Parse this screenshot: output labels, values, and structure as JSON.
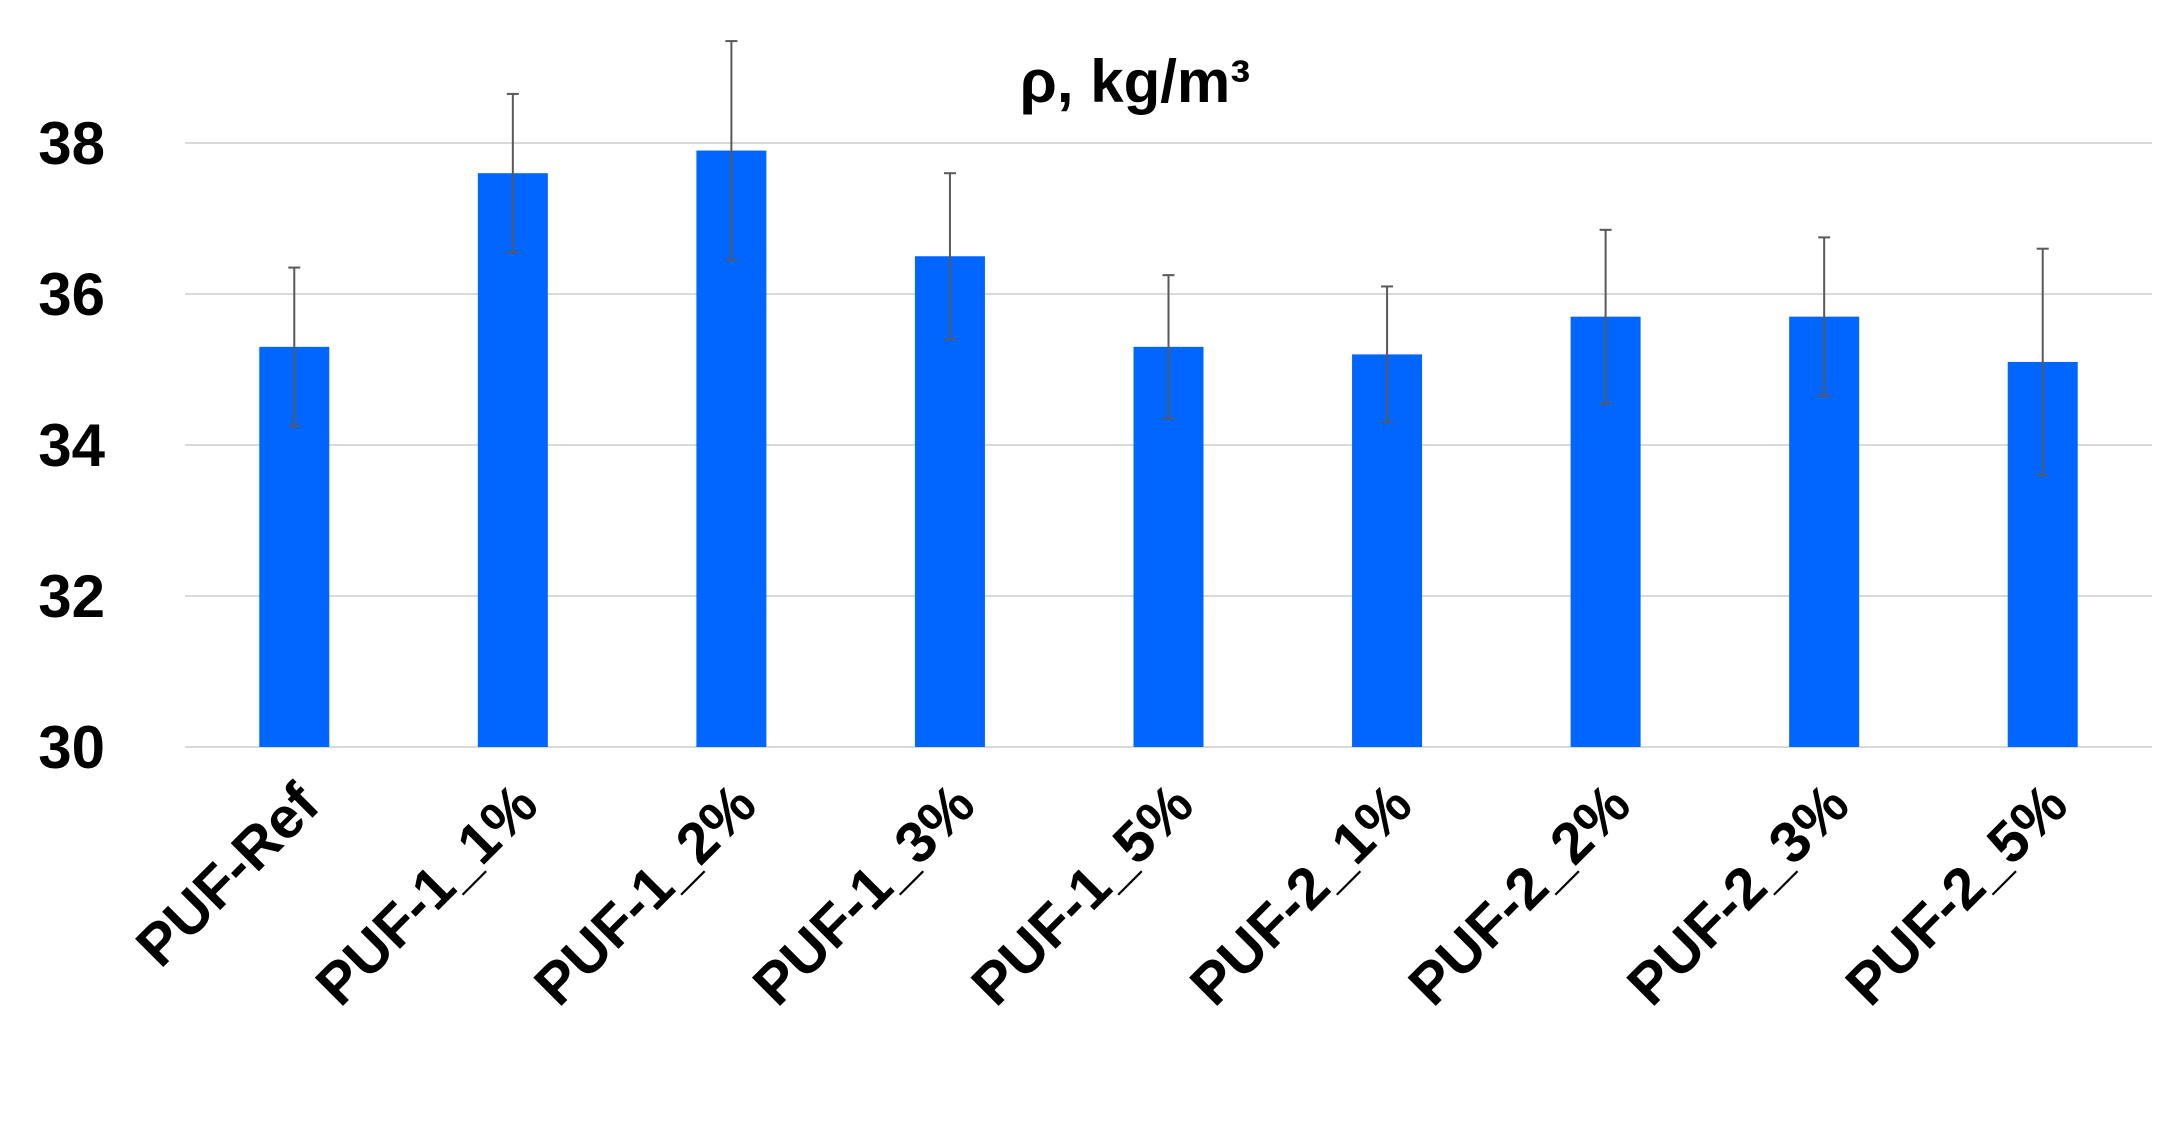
{
  "chart_data": {
    "type": "bar",
    "title": "ρ, kg/m³",
    "xlabel": "",
    "ylabel": "",
    "ylim": [
      30,
      39.5
    ],
    "yticks": [
      30,
      32,
      34,
      36,
      38
    ],
    "grid": true,
    "bar_color": "#0066ff",
    "categories": [
      "PUF-Ref",
      "PUF-1_1%",
      "PUF-1_2%",
      "PUF-1_3%",
      "PUF-1_5%",
      "PUF-2_1%",
      "PUF-2_2%",
      "PUF-2_3%",
      "PUF-2_5%"
    ],
    "values": [
      35.3,
      37.6,
      37.9,
      36.5,
      35.3,
      35.2,
      35.7,
      35.7,
      35.1
    ],
    "errors": [
      1.05,
      1.05,
      1.45,
      1.1,
      0.95,
      0.9,
      1.15,
      1.05,
      1.5
    ]
  }
}
